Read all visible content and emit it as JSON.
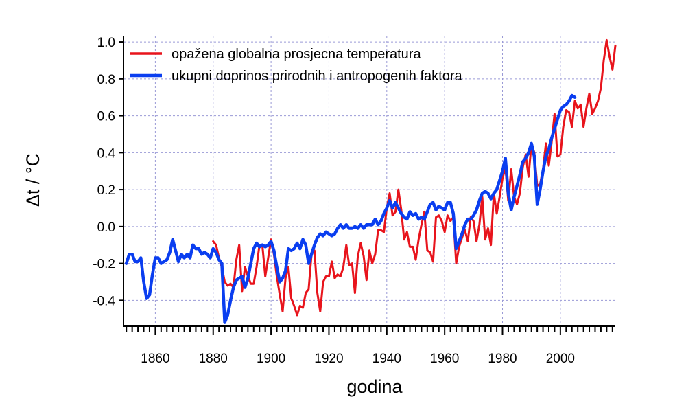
{
  "chart_data": {
    "type": "line",
    "xlabel": "godina",
    "ylabel": "Δt / °C",
    "xlim": [
      1849,
      2019
    ],
    "ylim": [
      -0.54,
      1.03
    ],
    "x_ticks": [
      1860,
      1880,
      1900,
      1920,
      1940,
      1960,
      1980,
      2000
    ],
    "y_ticks": [
      -0.4,
      -0.2,
      0.0,
      0.2,
      0.4,
      0.6,
      0.8,
      1.0
    ],
    "y_tick_labels": [
      "-0.4",
      "-0.2",
      "0.0",
      "0.2",
      "0.4",
      "0.6",
      "0.8",
      "1.0"
    ],
    "grid": true,
    "legend": "top-left",
    "series": [
      {
        "name": "opažena globalna prosjecna temperatura",
        "color": "#e8141c",
        "points": [
          [
            1880,
            -0.08
          ],
          [
            1881,
            -0.1
          ],
          [
            1882,
            -0.17
          ],
          [
            1883,
            -0.22
          ],
          [
            1884,
            -0.3
          ],
          [
            1885,
            -0.32
          ],
          [
            1886,
            -0.31
          ],
          [
            1887,
            -0.33
          ],
          [
            1888,
            -0.18
          ],
          [
            1889,
            -0.1
          ],
          [
            1890,
            -0.35
          ],
          [
            1891,
            -0.22
          ],
          [
            1892,
            -0.27
          ],
          [
            1893,
            -0.31
          ],
          [
            1894,
            -0.31
          ],
          [
            1895,
            -0.22
          ],
          [
            1896,
            -0.1
          ],
          [
            1897,
            -0.1
          ],
          [
            1898,
            -0.27
          ],
          [
            1899,
            -0.17
          ],
          [
            1900,
            -0.07
          ],
          [
            1901,
            -0.15
          ],
          [
            1902,
            -0.27
          ],
          [
            1903,
            -0.37
          ],
          [
            1904,
            -0.46
          ],
          [
            1905,
            -0.28
          ],
          [
            1906,
            -0.22
          ],
          [
            1907,
            -0.39
          ],
          [
            1908,
            -0.43
          ],
          [
            1909,
            -0.48
          ],
          [
            1910,
            -0.43
          ],
          [
            1911,
            -0.44
          ],
          [
            1912,
            -0.36
          ],
          [
            1913,
            -0.34
          ],
          [
            1914,
            -0.15
          ],
          [
            1915,
            -0.13
          ],
          [
            1916,
            -0.36
          ],
          [
            1917,
            -0.46
          ],
          [
            1918,
            -0.3
          ],
          [
            1919,
            -0.27
          ],
          [
            1920,
            -0.27
          ],
          [
            1921,
            -0.19
          ],
          [
            1922,
            -0.28
          ],
          [
            1923,
            -0.26
          ],
          [
            1924,
            -0.27
          ],
          [
            1925,
            -0.22
          ],
          [
            1926,
            -0.1
          ],
          [
            1927,
            -0.21
          ],
          [
            1928,
            -0.2
          ],
          [
            1929,
            -0.36
          ],
          [
            1930,
            -0.16
          ],
          [
            1931,
            -0.09
          ],
          [
            1932,
            -0.16
          ],
          [
            1933,
            -0.29
          ],
          [
            1934,
            -0.13
          ],
          [
            1935,
            -0.2
          ],
          [
            1936,
            -0.15
          ],
          [
            1937,
            -0.02
          ],
          [
            1938,
            -0.02
          ],
          [
            1939,
            -0.03
          ],
          [
            1940,
            0.1
          ],
          [
            1941,
            0.18
          ],
          [
            1942,
            0.06
          ],
          [
            1943,
            0.08
          ],
          [
            1944,
            0.2
          ],
          [
            1945,
            0.09
          ],
          [
            1946,
            -0.07
          ],
          [
            1947,
            -0.03
          ],
          [
            1948,
            -0.11
          ],
          [
            1949,
            -0.11
          ],
          [
            1950,
            -0.18
          ],
          [
            1951,
            -0.07
          ],
          [
            1952,
            0.01
          ],
          [
            1953,
            0.08
          ],
          [
            1954,
            -0.13
          ],
          [
            1955,
            -0.14
          ],
          [
            1956,
            -0.19
          ],
          [
            1957,
            0.05
          ],
          [
            1958,
            0.06
          ],
          [
            1959,
            0.03
          ],
          [
            1960,
            -0.03
          ],
          [
            1961,
            0.06
          ],
          [
            1962,
            0.03
          ],
          [
            1963,
            0.05
          ],
          [
            1964,
            -0.2
          ],
          [
            1965,
            -0.11
          ],
          [
            1966,
            -0.06
          ],
          [
            1967,
            -0.02
          ],
          [
            1968,
            -0.08
          ],
          [
            1969,
            0.05
          ],
          [
            1970,
            0.03
          ],
          [
            1971,
            -0.08
          ],
          [
            1972,
            0.01
          ],
          [
            1973,
            0.16
          ],
          [
            1974,
            -0.07
          ],
          [
            1975,
            -0.01
          ],
          [
            1976,
            -0.1
          ],
          [
            1977,
            0.18
          ],
          [
            1978,
            0.07
          ],
          [
            1979,
            0.16
          ],
          [
            1980,
            0.26
          ],
          [
            1981,
            0.32
          ],
          [
            1982,
            0.14
          ],
          [
            1983,
            0.31
          ],
          [
            1984,
            0.16
          ],
          [
            1985,
            0.12
          ],
          [
            1986,
            0.18
          ],
          [
            1987,
            0.32
          ],
          [
            1988,
            0.39
          ],
          [
            1989,
            0.27
          ],
          [
            1990,
            0.45
          ],
          [
            1991,
            0.4
          ],
          [
            1992,
            0.22
          ],
          [
            1993,
            0.23
          ],
          [
            1994,
            0.31
          ],
          [
            1995,
            0.45
          ],
          [
            1996,
            0.33
          ],
          [
            1997,
            0.46
          ],
          [
            1998,
            0.61
          ],
          [
            1999,
            0.38
          ],
          [
            2000,
            0.39
          ],
          [
            2001,
            0.54
          ],
          [
            2002,
            0.63
          ],
          [
            2003,
            0.62
          ],
          [
            2004,
            0.54
          ],
          [
            2005,
            0.68
          ],
          [
            2006,
            0.64
          ],
          [
            2007,
            0.66
          ],
          [
            2008,
            0.54
          ],
          [
            2009,
            0.64
          ],
          [
            2010,
            0.72
          ],
          [
            2011,
            0.61
          ],
          [
            2012,
            0.64
          ],
          [
            2013,
            0.68
          ],
          [
            2014,
            0.75
          ],
          [
            2015,
            0.9
          ],
          [
            2016,
            1.01
          ],
          [
            2017,
            0.92
          ],
          [
            2018,
            0.85
          ],
          [
            2019,
            0.98
          ]
        ]
      },
      {
        "name": "ukupni doprinos prirodnih i antropogenih faktora",
        "color": "#0a3ef0",
        "points": [
          [
            1850,
            -0.2
          ],
          [
            1851,
            -0.15
          ],
          [
            1852,
            -0.15
          ],
          [
            1853,
            -0.19
          ],
          [
            1854,
            -0.19
          ],
          [
            1855,
            -0.17
          ],
          [
            1856,
            -0.3
          ],
          [
            1857,
            -0.39
          ],
          [
            1858,
            -0.37
          ],
          [
            1859,
            -0.26
          ],
          [
            1860,
            -0.17
          ],
          [
            1861,
            -0.17
          ],
          [
            1862,
            -0.2
          ],
          [
            1863,
            -0.19
          ],
          [
            1864,
            -0.18
          ],
          [
            1865,
            -0.14
          ],
          [
            1866,
            -0.07
          ],
          [
            1867,
            -0.13
          ],
          [
            1868,
            -0.19
          ],
          [
            1869,
            -0.15
          ],
          [
            1870,
            -0.17
          ],
          [
            1871,
            -0.15
          ],
          [
            1872,
            -0.17
          ],
          [
            1873,
            -0.1
          ],
          [
            1874,
            -0.12
          ],
          [
            1875,
            -0.12
          ],
          [
            1876,
            -0.15
          ],
          [
            1877,
            -0.14
          ],
          [
            1878,
            -0.15
          ],
          [
            1879,
            -0.17
          ],
          [
            1880,
            -0.12
          ],
          [
            1881,
            -0.14
          ],
          [
            1882,
            -0.18
          ],
          [
            1883,
            -0.2
          ],
          [
            1884,
            -0.52
          ],
          [
            1885,
            -0.48
          ],
          [
            1886,
            -0.4
          ],
          [
            1887,
            -0.33
          ],
          [
            1888,
            -0.29
          ],
          [
            1889,
            -0.28
          ],
          [
            1890,
            -0.27
          ],
          [
            1891,
            -0.33
          ],
          [
            1892,
            -0.28
          ],
          [
            1893,
            -0.2
          ],
          [
            1894,
            -0.12
          ],
          [
            1895,
            -0.09
          ],
          [
            1896,
            -0.11
          ],
          [
            1897,
            -0.1
          ],
          [
            1898,
            -0.11
          ],
          [
            1899,
            -0.1
          ],
          [
            1900,
            -0.08
          ],
          [
            1901,
            -0.13
          ],
          [
            1902,
            -0.22
          ],
          [
            1903,
            -0.3
          ],
          [
            1904,
            -0.28
          ],
          [
            1905,
            -0.24
          ],
          [
            1906,
            -0.12
          ],
          [
            1907,
            -0.13
          ],
          [
            1908,
            -0.12
          ],
          [
            1909,
            -0.09
          ],
          [
            1910,
            -0.12
          ],
          [
            1911,
            -0.07
          ],
          [
            1912,
            -0.1
          ],
          [
            1913,
            -0.2
          ],
          [
            1914,
            -0.15
          ],
          [
            1915,
            -0.1
          ],
          [
            1916,
            -0.06
          ],
          [
            1917,
            -0.04
          ],
          [
            1918,
            -0.05
          ],
          [
            1919,
            -0.03
          ],
          [
            1920,
            -0.04
          ],
          [
            1921,
            -0.05
          ],
          [
            1922,
            -0.04
          ],
          [
            1923,
            -0.01
          ],
          [
            1924,
            0.01
          ],
          [
            1925,
            -0.01
          ],
          [
            1926,
            0.01
          ],
          [
            1927,
            -0.01
          ],
          [
            1928,
            -0.01
          ],
          [
            1929,
            0.0
          ],
          [
            1930,
            -0.01
          ],
          [
            1931,
            0.01
          ],
          [
            1932,
            -0.01
          ],
          [
            1933,
            0.01
          ],
          [
            1934,
            0.01
          ],
          [
            1935,
            0.01
          ],
          [
            1936,
            0.04
          ],
          [
            1937,
            0.01
          ],
          [
            1938,
            0.03
          ],
          [
            1939,
            0.07
          ],
          [
            1940,
            0.1
          ],
          [
            1941,
            0.14
          ],
          [
            1942,
            0.1
          ],
          [
            1943,
            0.13
          ],
          [
            1944,
            0.1
          ],
          [
            1945,
            0.07
          ],
          [
            1946,
            0.05
          ],
          [
            1947,
            0.04
          ],
          [
            1948,
            0.08
          ],
          [
            1949,
            0.06
          ],
          [
            1950,
            0.07
          ],
          [
            1951,
            0.04
          ],
          [
            1952,
            0.05
          ],
          [
            1953,
            0.04
          ],
          [
            1954,
            0.08
          ],
          [
            1955,
            0.12
          ],
          [
            1956,
            0.13
          ],
          [
            1957,
            0.09
          ],
          [
            1958,
            0.11
          ],
          [
            1959,
            0.1
          ],
          [
            1960,
            0.09
          ],
          [
            1961,
            0.13
          ],
          [
            1962,
            0.13
          ],
          [
            1963,
            0.07
          ],
          [
            1964,
            -0.12
          ],
          [
            1965,
            -0.08
          ],
          [
            1966,
            -0.04
          ],
          [
            1967,
            0.01
          ],
          [
            1968,
            0.04
          ],
          [
            1969,
            0.04
          ],
          [
            1970,
            0.06
          ],
          [
            1971,
            0.09
          ],
          [
            1972,
            0.14
          ],
          [
            1973,
            0.18
          ],
          [
            1974,
            0.19
          ],
          [
            1975,
            0.18
          ],
          [
            1976,
            0.15
          ],
          [
            1977,
            0.18
          ],
          [
            1978,
            0.2
          ],
          [
            1979,
            0.25
          ],
          [
            1980,
            0.3
          ],
          [
            1981,
            0.37
          ],
          [
            1982,
            0.18
          ],
          [
            1983,
            0.09
          ],
          [
            1984,
            0.16
          ],
          [
            1985,
            0.22
          ],
          [
            1986,
            0.28
          ],
          [
            1987,
            0.35
          ],
          [
            1988,
            0.37
          ],
          [
            1989,
            0.4
          ],
          [
            1990,
            0.45
          ],
          [
            1991,
            0.38
          ],
          [
            1992,
            0.12
          ],
          [
            1993,
            0.2
          ],
          [
            1994,
            0.3
          ],
          [
            1995,
            0.38
          ],
          [
            1996,
            0.42
          ],
          [
            1997,
            0.48
          ],
          [
            1998,
            0.53
          ],
          [
            1999,
            0.58
          ],
          [
            2000,
            0.63
          ],
          [
            2001,
            0.65
          ],
          [
            2002,
            0.66
          ],
          [
            2003,
            0.68
          ],
          [
            2004,
            0.71
          ],
          [
            2005,
            0.7
          ]
        ]
      }
    ]
  }
}
